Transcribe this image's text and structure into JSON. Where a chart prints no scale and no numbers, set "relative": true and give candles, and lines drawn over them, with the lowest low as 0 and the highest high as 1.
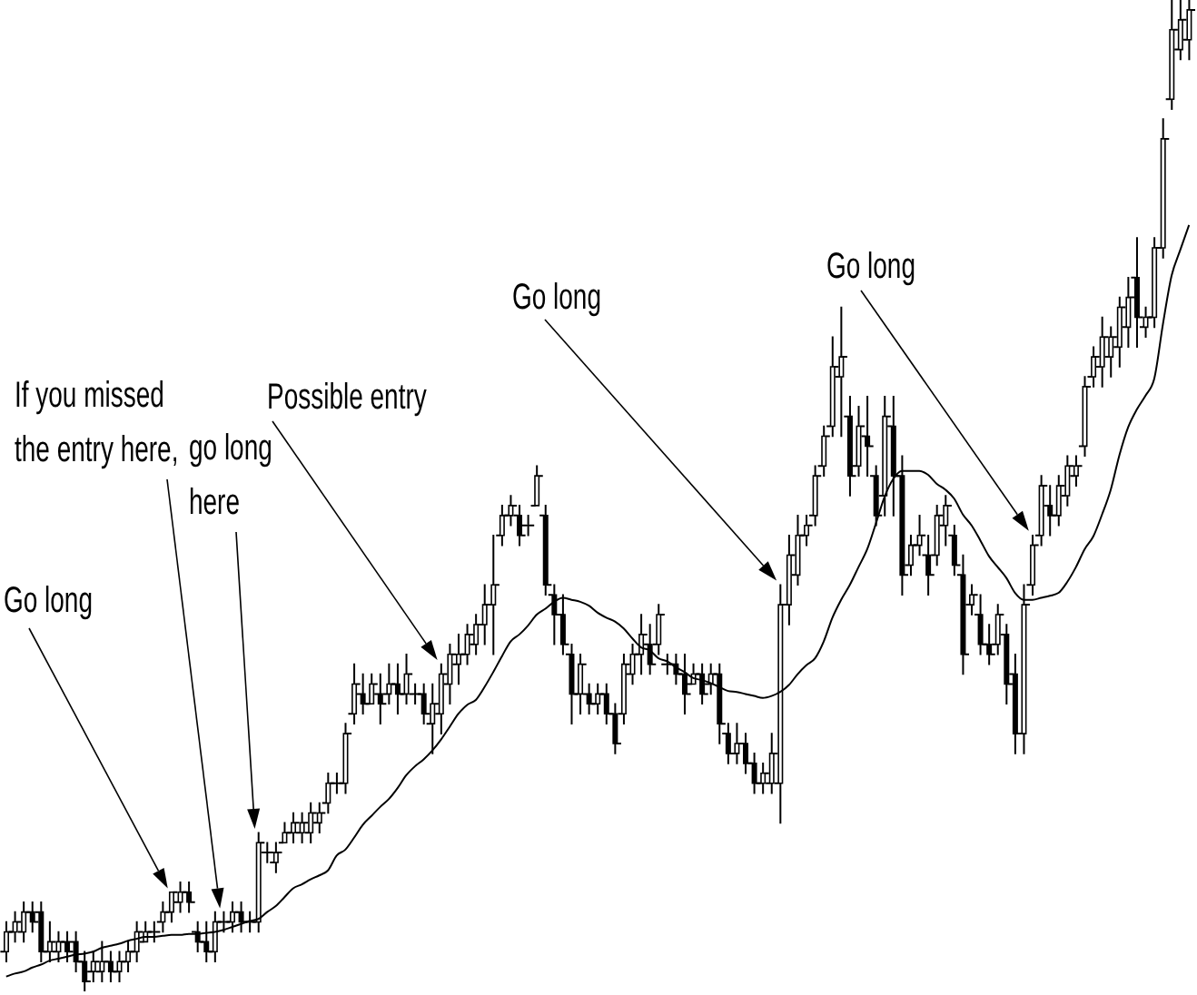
{
  "chart_data": {
    "type": "candlestick",
    "relative": true,
    "color": "#000000",
    "categories": [
      null,
      null,
      null,
      null,
      null,
      null,
      null,
      null,
      null,
      null,
      null,
      null,
      null,
      null,
      null,
      null,
      null,
      null,
      null,
      null,
      null,
      null,
      null,
      null,
      null,
      null,
      null,
      null,
      null,
      null,
      null,
      null,
      null,
      null,
      null,
      null,
      null,
      null,
      null,
      null,
      null,
      null,
      null,
      null,
      null,
      null,
      null,
      null,
      null,
      null,
      null,
      null,
      null,
      null,
      null,
      null,
      null,
      null,
      null,
      null,
      null,
      null,
      null,
      null,
      null,
      null,
      null,
      null,
      null,
      null,
      null,
      null,
      null,
      null,
      null,
      null,
      null,
      null,
      null,
      null,
      null,
      null,
      null,
      null,
      null,
      null,
      null,
      null,
      null,
      null,
      null,
      null,
      null,
      null,
      null,
      null,
      null,
      null,
      null,
      null,
      null,
      null,
      null,
      null,
      null,
      null,
      null,
      null,
      null,
      null,
      null,
      null,
      null,
      null,
      null,
      null,
      null,
      null,
      null,
      null,
      null,
      null,
      null,
      null,
      null,
      null,
      null,
      null,
      null,
      null,
      null,
      null,
      null,
      null,
      null,
      null,
      null
    ],
    "ohlc": [
      [
        0.04,
        0.07,
        0.03,
        0.06
      ],
      [
        0.06,
        0.08,
        0.05,
        0.07
      ],
      [
        0.06,
        0.09,
        0.05,
        0.08
      ],
      [
        0.08,
        0.09,
        0.06,
        0.07
      ],
      [
        0.08,
        0.09,
        0.03,
        0.04
      ],
      [
        0.04,
        0.07,
        0.03,
        0.05
      ],
      [
        0.04,
        0.06,
        0.03,
        0.05
      ],
      [
        0.05,
        0.06,
        0.03,
        0.04
      ],
      [
        0.05,
        0.06,
        0.02,
        0.03
      ],
      [
        0.03,
        0.04,
        0,
        0.01
      ],
      [
        0.02,
        0.04,
        0.01,
        0.03
      ],
      [
        0.02,
        0.05,
        0.01,
        0.03
      ],
      [
        0.03,
        0.04,
        0.01,
        0.02
      ],
      [
        0.02,
        0.04,
        0.01,
        0.03
      ],
      [
        0.03,
        0.05,
        0.02,
        0.04
      ],
      [
        0.04,
        0.07,
        0.03,
        0.06
      ],
      [
        0.05,
        0.07,
        0.05,
        0.06
      ],
      [
        0.06,
        0.07,
        0.05,
        0.06
      ],
      [
        0.07,
        0.09,
        0.06,
        0.08
      ],
      [
        0.08,
        0.1,
        0.07,
        0.1
      ],
      [
        0.09,
        0.11,
        0.08,
        0.1
      ],
      [
        0.1,
        0.11,
        0.08,
        0.09
      ],
      [
        0.06,
        0.07,
        0.04,
        0.05
      ],
      [
        0.05,
        0.07,
        0.03,
        0.04
      ],
      [
        0.04,
        0.08,
        0.03,
        0.07
      ],
      [
        0.07,
        0.08,
        0.06,
        0.07
      ],
      [
        0.07,
        0.09,
        0.06,
        0.08
      ],
      [
        0.08,
        0.09,
        0.06,
        0.07
      ],
      [
        0.07,
        0.08,
        0.06,
        0.07
      ],
      [
        0.07,
        0.16,
        0.06,
        0.15
      ],
      [
        0.14,
        0.15,
        0.13,
        0.14
      ],
      [
        0.13,
        0.15,
        0.12,
        0.14
      ],
      [
        0.15,
        0.17,
        0.15,
        0.16
      ],
      [
        0.16,
        0.18,
        0.15,
        0.17
      ],
      [
        0.16,
        0.18,
        0.15,
        0.17
      ],
      [
        0.16,
        0.19,
        0.15,
        0.18
      ],
      [
        0.17,
        0.19,
        0.16,
        0.18
      ],
      [
        0.19,
        0.22,
        0.18,
        0.21
      ],
      [
        0.21,
        0.22,
        0.2,
        0.21
      ],
      [
        0.21,
        0.27,
        0.2,
        0.26
      ],
      [
        0.28,
        0.33,
        0.27,
        0.31
      ],
      [
        0.3,
        0.32,
        0.28,
        0.29
      ],
      [
        0.29,
        0.32,
        0.29,
        0.31
      ],
      [
        0.3,
        0.32,
        0.27,
        0.29
      ],
      [
        0.3,
        0.33,
        0.29,
        0.31
      ],
      [
        0.31,
        0.33,
        0.28,
        0.3
      ],
      [
        0.3,
        0.34,
        0.29,
        0.32
      ],
      [
        0.3,
        0.31,
        0.29,
        0.3
      ],
      [
        0.3,
        0.31,
        0.27,
        0.28
      ],
      [
        0.27,
        0.31,
        0.24,
        0.29
      ],
      [
        0.28,
        0.33,
        0.26,
        0.32
      ],
      [
        0.31,
        0.35,
        0.29,
        0.34
      ],
      [
        0.33,
        0.36,
        0.31,
        0.34
      ],
      [
        0.34,
        0.37,
        0.33,
        0.36
      ],
      [
        0.35,
        0.38,
        0.34,
        0.37
      ],
      [
        0.37,
        0.41,
        0.35,
        0.39
      ],
      [
        0.39,
        0.46,
        0.34,
        0.41
      ],
      [
        0.46,
        0.49,
        0.45,
        0.48
      ],
      [
        0.48,
        0.5,
        0.47,
        0.49
      ],
      [
        0.48,
        0.49,
        0.45,
        0.46
      ],
      [
        0.47,
        0.48,
        0.46,
        0.47
      ],
      [
        0.49,
        0.53,
        0.49,
        0.52
      ],
      [
        0.48,
        0.49,
        0.4,
        0.41
      ],
      [
        0.4,
        0.41,
        0.35,
        0.38
      ],
      [
        0.38,
        0.4,
        0.34,
        0.35
      ],
      [
        0.34,
        0.35,
        0.27,
        0.3
      ],
      [
        0.3,
        0.34,
        0.28,
        0.33
      ],
      [
        0.3,
        0.31,
        0.28,
        0.29
      ],
      [
        0.29,
        0.31,
        0.28,
        0.3
      ],
      [
        0.3,
        0.31,
        0.27,
        0.28
      ],
      [
        0.28,
        0.29,
        0.24,
        0.25
      ],
      [
        0.28,
        0.34,
        0.27,
        0.33
      ],
      [
        0.32,
        0.35,
        0.31,
        0.34
      ],
      [
        0.34,
        0.38,
        0.32,
        0.36
      ],
      [
        0.35,
        0.37,
        0.32,
        0.33
      ],
      [
        0.35,
        0.39,
        0.34,
        0.38
      ],
      [
        0.33,
        0.34,
        0.32,
        0.33
      ],
      [
        0.33,
        0.34,
        0.31,
        0.32
      ],
      [
        0.32,
        0.34,
        0.28,
        0.3
      ],
      [
        0.31,
        0.33,
        0.31,
        0.32
      ],
      [
        0.32,
        0.33,
        0.29,
        0.3
      ],
      [
        0.31,
        0.33,
        0.3,
        0.32
      ],
      [
        0.32,
        0.33,
        0.25,
        0.27
      ],
      [
        0.26,
        0.27,
        0.23,
        0.24
      ],
      [
        0.24,
        0.27,
        0.23,
        0.25
      ],
      [
        0.25,
        0.26,
        0.22,
        0.23
      ],
      [
        0.23,
        0.24,
        0.2,
        0.21
      ],
      [
        0.21,
        0.23,
        0.2,
        0.22
      ],
      [
        0.21,
        0.26,
        0.2,
        0.24
      ],
      [
        0.21,
        0.41,
        0.17,
        0.39
      ],
      [
        0.39,
        0.46,
        0.37,
        0.44
      ],
      [
        0.42,
        0.48,
        0.41,
        0.46
      ],
      [
        0.46,
        0.48,
        0.45,
        0.47
      ],
      [
        0.48,
        0.53,
        0.47,
        0.52
      ],
      [
        0.53,
        0.57,
        0.52,
        0.56
      ],
      [
        0.57,
        0.66,
        0.56,
        0.63
      ],
      [
        0.62,
        0.69,
        0.56,
        0.64
      ],
      [
        0.58,
        0.6,
        0.5,
        0.52
      ],
      [
        0.53,
        0.59,
        0.52,
        0.57
      ],
      [
        0.56,
        0.6,
        0.52,
        0.55
      ],
      [
        0.52,
        0.53,
        0.47,
        0.48
      ],
      [
        0.5,
        0.6,
        0.48,
        0.58
      ],
      [
        0.57,
        0.6,
        0.48,
        0.52
      ],
      [
        0.52,
        0.54,
        0.4,
        0.42
      ],
      [
        0.43,
        0.46,
        0.42,
        0.45
      ],
      [
        0.45,
        0.48,
        0.44,
        0.46
      ],
      [
        0.44,
        0.46,
        0.4,
        0.42
      ],
      [
        0.44,
        0.49,
        0.43,
        0.48
      ],
      [
        0.47,
        0.5,
        0.45,
        0.49
      ],
      [
        0.46,
        0.47,
        0.42,
        0.43
      ],
      [
        0.42,
        0.44,
        0.32,
        0.34
      ],
      [
        0.39,
        0.41,
        0.38,
        0.4
      ],
      [
        0.38,
        0.4,
        0.34,
        0.35
      ],
      [
        0.35,
        0.37,
        0.33,
        0.34
      ],
      [
        0.35,
        0.39,
        0.34,
        0.38
      ],
      [
        0.36,
        0.37,
        0.29,
        0.31
      ],
      [
        0.32,
        0.34,
        0.24,
        0.26
      ],
      [
        0.26,
        0.41,
        0.24,
        0.39
      ],
      [
        0.41,
        0.46,
        0.4,
        0.45
      ],
      [
        0.46,
        0.52,
        0.45,
        0.51
      ],
      [
        0.49,
        0.51,
        0.46,
        0.48
      ],
      [
        0.48,
        0.52,
        0.47,
        0.51
      ],
      [
        0.5,
        0.54,
        0.49,
        0.53
      ],
      [
        0.52,
        0.54,
        0.51,
        0.53
      ],
      [
        0.55,
        0.62,
        0.54,
        0.61
      ],
      [
        0.62,
        0.65,
        0.61,
        0.64
      ],
      [
        0.63,
        0.68,
        0.61,
        0.66
      ],
      [
        0.64,
        0.67,
        0.62,
        0.66
      ],
      [
        0.65,
        0.7,
        0.63,
        0.69
      ],
      [
        0.67,
        0.72,
        0.65,
        0.7
      ],
      [
        0.72,
        0.76,
        0.65,
        0.68
      ],
      [
        0.67,
        0.69,
        0.66,
        0.68
      ],
      [
        0.68,
        0.76,
        0.67,
        0.75
      ],
      [
        0.75,
        0.88,
        0.74,
        0.86
      ],
      [
        0.9,
        1,
        0.89,
        0.97
      ],
      [
        0.95,
        1,
        0.94,
        0.98
      ],
      [
        0.96,
        1,
        0.94,
        0.99
      ]
    ],
    "series": [
      {
        "type": "line",
        "color": "#000000",
        "values": [
          0.015,
          0.018,
          0.02,
          0.024,
          0.027,
          0.031,
          0.033,
          0.035,
          0.037,
          0.038,
          0.04,
          0.044,
          0.046,
          0.048,
          0.051,
          0.053,
          0.055,
          0.055,
          0.056,
          0.057,
          0.057,
          0.058,
          0.058,
          0.059,
          0.06,
          0.062,
          0.065,
          0.068,
          0.071,
          0.073,
          0.08,
          0.086,
          0.095,
          0.104,
          0.108,
          0.113,
          0.117,
          0.122,
          0.137,
          0.143,
          0.155,
          0.168,
          0.177,
          0.186,
          0.194,
          0.205,
          0.218,
          0.227,
          0.234,
          0.243,
          0.254,
          0.267,
          0.28,
          0.289,
          0.294,
          0.307,
          0.322,
          0.338,
          0.353,
          0.36,
          0.369,
          0.38,
          0.386,
          0.393,
          0.397,
          0.395,
          0.393,
          0.389,
          0.382,
          0.377,
          0.373,
          0.366,
          0.356,
          0.347,
          0.344,
          0.336,
          0.333,
          0.327,
          0.322,
          0.316,
          0.314,
          0.311,
          0.307,
          0.303,
          0.302,
          0.3,
          0.298,
          0.296,
          0.298,
          0.302,
          0.309,
          0.32,
          0.329,
          0.336,
          0.353,
          0.377,
          0.395,
          0.41,
          0.428,
          0.446,
          0.472,
          0.499,
          0.517,
          0.525,
          0.525,
          0.525,
          0.521,
          0.512,
          0.506,
          0.497,
          0.481,
          0.47,
          0.455,
          0.439,
          0.428,
          0.417,
          0.402,
          0.395,
          0.395,
          0.397,
          0.399,
          0.402,
          0.413,
          0.428,
          0.446,
          0.459,
          0.481,
          0.506,
          0.541,
          0.569,
          0.587,
          0.601,
          0.618,
          0.673,
          0.722,
          0.748,
          0.773
        ]
      }
    ],
    "annotations": [
      "Go long",
      "If you missed the entry here,",
      "go long here",
      "Possible entry",
      "Go long",
      "Go long"
    ]
  }
}
